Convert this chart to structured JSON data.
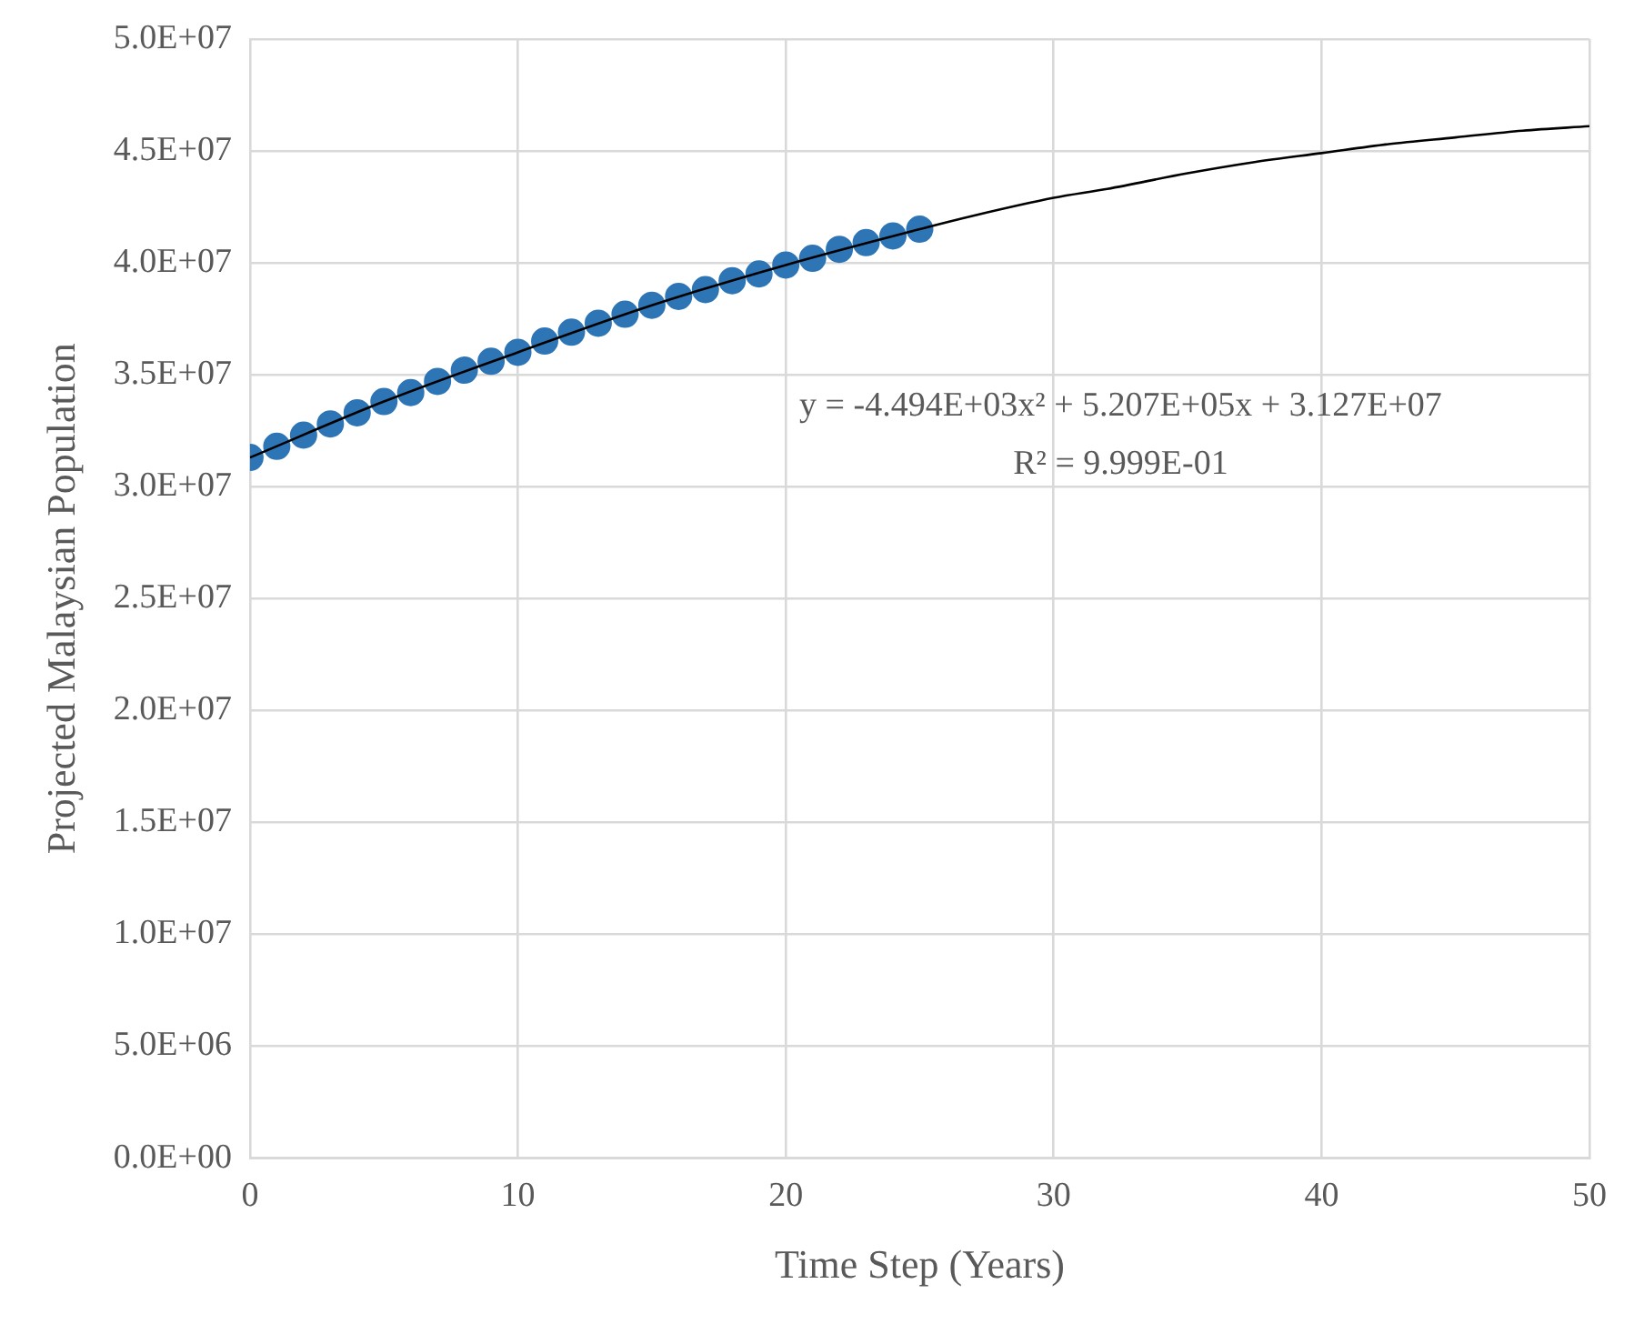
{
  "chart_data": {
    "type": "scatter",
    "xlabel": "Time Step (Years)",
    "ylabel": "Projected Malaysian Population",
    "x": [
      0,
      1,
      2,
      3,
      4,
      5,
      6,
      7,
      8,
      9,
      10,
      11,
      12,
      13,
      14,
      15,
      16,
      17,
      18,
      19,
      20,
      21,
      22,
      23,
      24,
      25
    ],
    "series": [
      {
        "color": "#2e75b6",
        "marker": "circle",
        "values": [
          31300000,
          31800000,
          32300000,
          32800000,
          33300000,
          33800000,
          34200000,
          34700000,
          35200000,
          35600000,
          36000000,
          36500000,
          36900000,
          37300000,
          37700000,
          38100000,
          38500000,
          38800000,
          39200000,
          39500000,
          39900000,
          40200000,
          40600000,
          40900000,
          41200000,
          41500000
        ]
      },
      {
        "type": "line",
        "color": "#000000",
        "marker": "none",
        "line_style": "solid",
        "x": [
          0,
          5,
          10,
          15,
          20,
          25,
          27,
          30,
          32,
          35,
          37.5,
          40,
          42.5,
          45,
          47.5,
          50
        ],
        "values": [
          31300000,
          33800000,
          36000000,
          38100000,
          39900000,
          41500000,
          42100000,
          42900000,
          43300000,
          44000000,
          44500000,
          44900000,
          45300000,
          45600000,
          45900000,
          46100000
        ]
      }
    ],
    "xlim": [
      0,
      50
    ],
    "xticks": [
      0,
      10,
      20,
      30,
      40,
      50
    ],
    "ylim": [
      0,
      50000000
    ],
    "yticks": [
      {
        "value": 0,
        "label": "0.0E+00"
      },
      {
        "value": 5000000,
        "label": "5.0E+06"
      },
      {
        "value": 10000000,
        "label": "1.0E+07"
      },
      {
        "value": 15000000,
        "label": "1.5E+07"
      },
      {
        "value": 20000000,
        "label": "2.0E+07"
      },
      {
        "value": 25000000,
        "label": "2.5E+07"
      },
      {
        "value": 30000000,
        "label": "3.0E+07"
      },
      {
        "value": 35000000,
        "label": "3.5E+07"
      },
      {
        "value": 40000000,
        "label": "4.0E+07"
      },
      {
        "value": 45000000,
        "label": "4.5E+07"
      },
      {
        "value": 50000000,
        "label": "5.0E+07"
      }
    ],
    "grid": true,
    "legend": false,
    "annotations": [
      "y = -4.494E+03x² + 5.207E+05x + 3.127E+07",
      "R² = 9.999E-01"
    ]
  }
}
